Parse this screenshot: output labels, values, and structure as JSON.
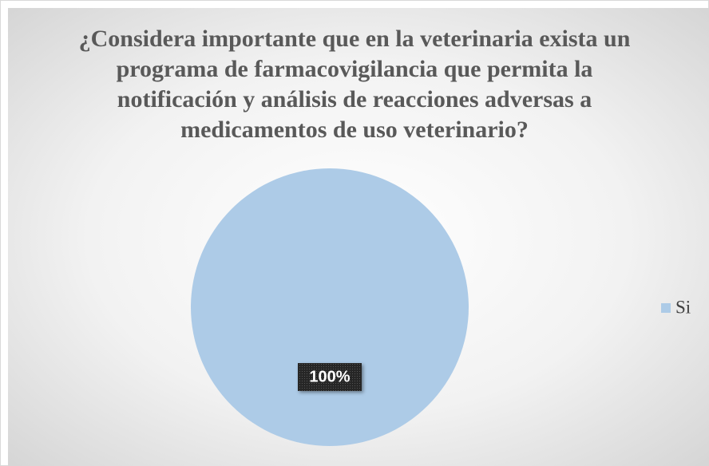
{
  "chart_data": {
    "type": "pie",
    "title": "¿Considera importante que en la veterinaria exista un programa de farmacovigilancia que permita la notificación y análisis de reacciones adversas a medicamentos de uso veterinario?",
    "categories": [
      "Si"
    ],
    "values": [
      100
    ],
    "value_labels": [
      "100%"
    ],
    "colors": [
      "#adcbe7"
    ],
    "legend": "right"
  }
}
